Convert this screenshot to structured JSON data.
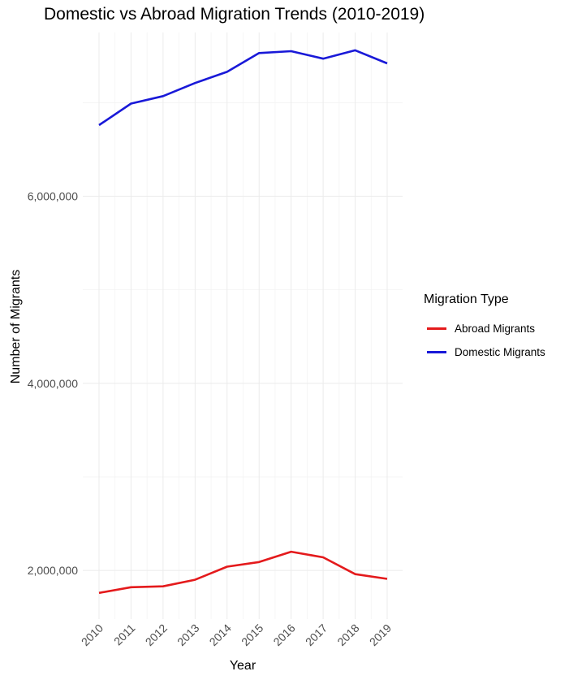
{
  "chart_data": {
    "type": "line",
    "title": "Domestic vs Abroad Migration Trends (2010-2019)",
    "xlabel": "Year",
    "ylabel": "Number of Migrants",
    "x": [
      "2010",
      "2011",
      "2012",
      "2013",
      "2014",
      "2015",
      "2016",
      "2017",
      "2018",
      "2019"
    ],
    "y_ticks": [
      2000000,
      4000000,
      6000000
    ],
    "y_tick_labels": [
      "2,000,000",
      "4,000,000",
      "6,000,000"
    ],
    "ylim": [
      1480000,
      7750000
    ],
    "grid": true,
    "legend": {
      "title": "Migration Type",
      "position": "right"
    },
    "series": [
      {
        "name": "Abroad Migrants",
        "color": "#e41a1c",
        "values": [
          1760000,
          1820000,
          1830000,
          1900000,
          2040000,
          2090000,
          2200000,
          2140000,
          1960000,
          1910000
        ]
      },
      {
        "name": "Domestic Migrants",
        "color": "#1919d8",
        "values": [
          6760000,
          6990000,
          7070000,
          7210000,
          7330000,
          7530000,
          7550000,
          7470000,
          7560000,
          7420000
        ]
      }
    ]
  }
}
